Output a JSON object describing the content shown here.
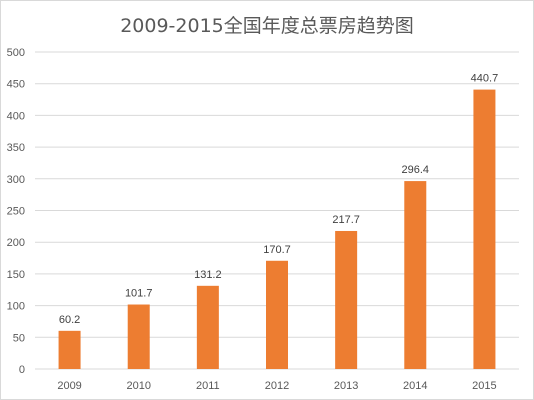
{
  "chart_data": {
    "type": "bar",
    "title": "2009-2015全国年度总票房趋势图",
    "xlabel": "",
    "ylabel": "",
    "categories": [
      "2009",
      "2010",
      "2011",
      "2012",
      "2013",
      "2014",
      "2015"
    ],
    "values": [
      60.2,
      101.7,
      131.2,
      170.7,
      217.7,
      296.4,
      440.7
    ],
    "data_labels": [
      "60.2",
      "101.7",
      "131.2",
      "170.7",
      "217.7",
      "296.4",
      "440.7"
    ],
    "ylim": [
      0,
      500
    ],
    "yticks": [
      0,
      50,
      100,
      150,
      200,
      250,
      300,
      350,
      400,
      450,
      500
    ],
    "grid": true,
    "legend": "none",
    "colors": {
      "bar": "#ED7D31",
      "grid": "#D9D9D9",
      "text": "#595959"
    }
  }
}
